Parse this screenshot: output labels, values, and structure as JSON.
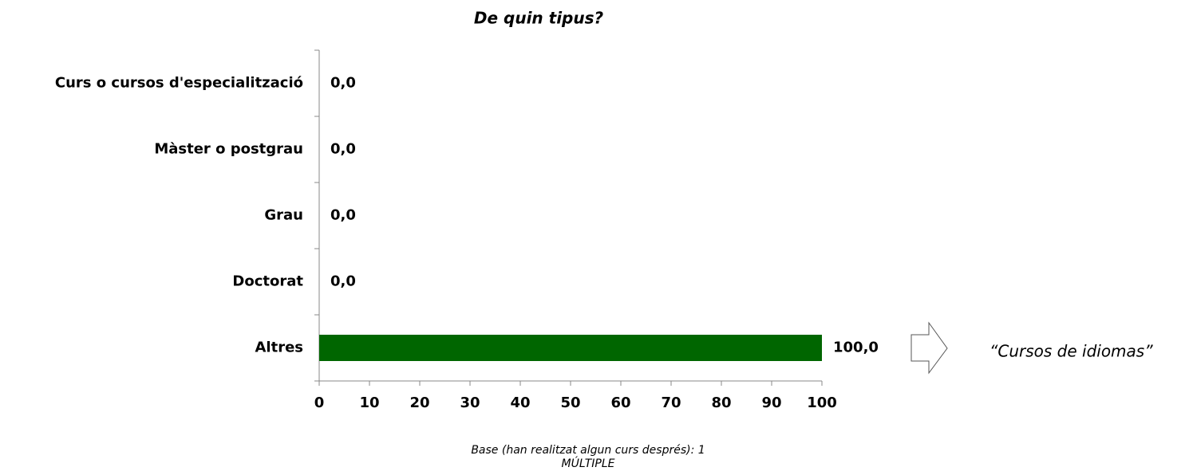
{
  "chart_data": {
    "type": "bar",
    "orientation": "horizontal",
    "title": "De quin tipus?",
    "categories": [
      "Curs o cursos d'especialització",
      "Màster o postgrau",
      "Grau",
      "Doctorat",
      "Altres"
    ],
    "values": [
      0,
      0,
      0,
      0,
      100
    ],
    "value_labels": [
      "0,0",
      "0,0",
      "0,0",
      "0,0",
      "100,0"
    ],
    "color": "#006600",
    "xlim": [
      0,
      100
    ],
    "xticks": [
      0,
      10,
      20,
      30,
      40,
      50,
      60,
      70,
      80,
      90,
      100
    ],
    "annotation": "“Cursos de idiomas”",
    "footnote": [
      "Base (han realitzat algun curs després): 1",
      "MÚLTIPLE"
    ]
  }
}
